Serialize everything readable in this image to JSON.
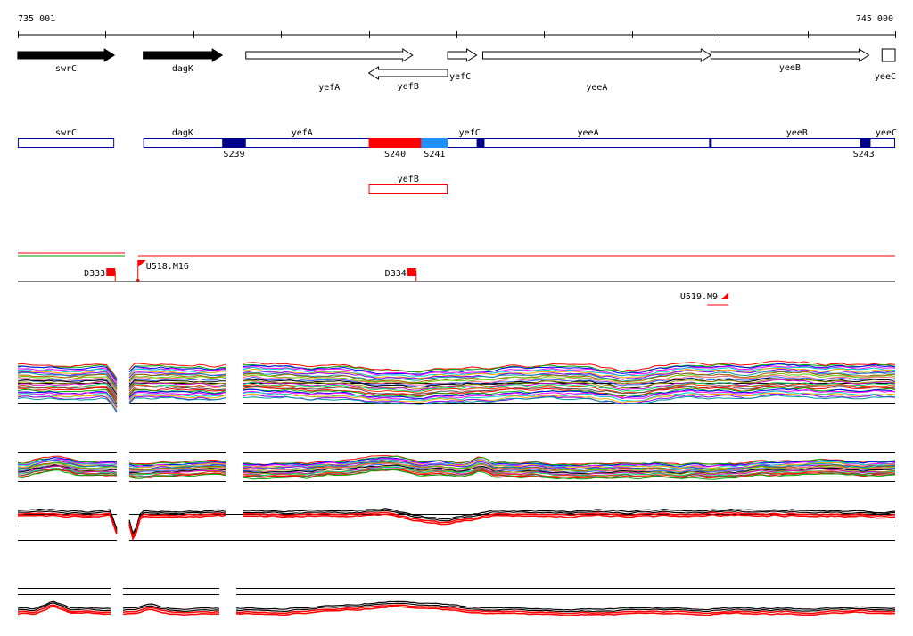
{
  "ruler": {
    "start_label": "735 001",
    "end_label": "745 000",
    "start_bp": 735001,
    "end_bp": 745000,
    "tick_step_bp": 1000
  },
  "colors": {
    "gene_fill_dark": "#000000",
    "gene_outline": "#000000",
    "transcript_blue": "#0000a0",
    "segment_dark_blue": "#00008b",
    "segment_red": "#ff0000",
    "segment_light_blue": "#1e90ff",
    "feature_red": "#ff0000"
  },
  "genes": [
    {
      "name": "swrC",
      "start": 735000,
      "end": 736100,
      "strand": "+",
      "row": 0,
      "filled": true
    },
    {
      "name": "dagK",
      "start": 736430,
      "end": 737330,
      "strand": "+",
      "row": 0,
      "filled": true
    },
    {
      "name": "yefA",
      "start": 737600,
      "end": 739500,
      "strand": "+",
      "row": 0,
      "filled": false
    },
    {
      "name": "yefB",
      "start": 739000,
      "end": 739900,
      "strand": "-",
      "row": 1,
      "filled": false
    },
    {
      "name": "yefC",
      "start": 739900,
      "end": 740230,
      "strand": "+",
      "row": 0,
      "filled": false
    },
    {
      "name": "yeeA",
      "start": 740300,
      "end": 742900,
      "strand": "+",
      "row": 0,
      "filled": false
    },
    {
      "name": "yeeB",
      "start": 742900,
      "end": 744700,
      "strand": "+",
      "row": 0,
      "filled": false
    },
    {
      "name": "yeeC",
      "start": 744850,
      "end": 745000,
      "strand": "+",
      "row": 0,
      "filled": false
    }
  ],
  "transcripts": [
    {
      "label": "swrC",
      "start": 735000,
      "end": 736100
    },
    {
      "label": "dagK",
      "start": 736430,
      "end": 745000
    }
  ],
  "transcript_labels": [
    {
      "text": "swrC",
      "pos": 735550
    },
    {
      "text": "dagK",
      "pos": 736880
    },
    {
      "text": "yefA",
      "pos": 738240
    },
    {
      "text": "yefC",
      "pos": 740150
    },
    {
      "text": "yeeA",
      "pos": 741500
    },
    {
      "text": "yeeB",
      "pos": 743880
    },
    {
      "text": "yeeC",
      "pos": 744920
    }
  ],
  "segments": [
    {
      "name": "S239",
      "start": 737330,
      "end": 737600,
      "color": "dark"
    },
    {
      "name": "S240",
      "start": 739000,
      "end": 739600,
      "color": "red"
    },
    {
      "name": "S241",
      "start": 739600,
      "end": 739900,
      "color": "lightblue"
    },
    {
      "name": "",
      "start": 740230,
      "end": 740320,
      "color": "dark"
    },
    {
      "name": "",
      "start": 742880,
      "end": 742910,
      "color": "dark"
    },
    {
      "name": "S243",
      "start": 744600,
      "end": 744720,
      "color": "dark"
    }
  ],
  "antisense": [
    {
      "label": "yefB",
      "start": 739000,
      "end": 739900
    }
  ],
  "features": [
    {
      "name": "D333",
      "pos": 736050,
      "kind": "box",
      "level": 0
    },
    {
      "name": "U518.M16",
      "pos": 736370,
      "kind": "flag-right",
      "level": 0
    },
    {
      "name": "D334",
      "pos": 739480,
      "kind": "box",
      "level": 0
    },
    {
      "name": "U519.M9",
      "pos": 743080,
      "kind": "flag-left",
      "level": 1
    }
  ]
}
